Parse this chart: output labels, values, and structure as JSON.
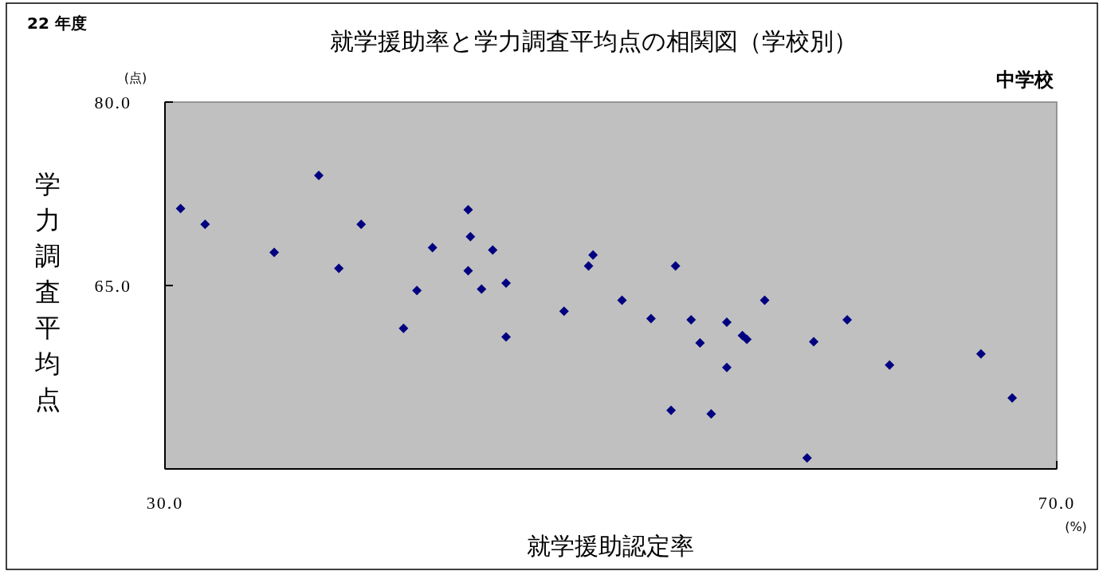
{
  "chart_data": {
    "type": "scatter",
    "title": "就学援助率と学力調査平均点の相関図（学校別）",
    "xlabel": "就学援助認定率",
    "ylabel": "学力調査平均点",
    "annotations": [
      "22 年度",
      "中学校",
      "(点)",
      "(%)"
    ],
    "xlim": [
      30,
      70
    ],
    "xticks": [
      {
        "value": 30,
        "label": "30.0"
      },
      {
        "value": 70,
        "label": "70.0"
      }
    ],
    "ylim": [
      50,
      80
    ],
    "yticks": [
      {
        "value": 65,
        "label": "65.0"
      },
      {
        "value": 80,
        "label": "80.0"
      }
    ],
    "grid": false,
    "marker": "diamond",
    "series": [
      {
        "color": "#000080",
        "x": [
          30.7,
          31.8,
          34.9,
          36.9,
          37.8,
          38.8,
          40.7,
          41.3,
          42.0,
          43.6,
          43.7,
          43.6,
          44.2,
          44.7,
          45.3,
          45.3,
          47.9,
          49.0,
          49.2,
          50.5,
          51.8,
          52.7,
          52.9,
          53.6,
          54.0,
          54.5,
          55.2,
          55.2,
          55.9,
          56.1,
          56.9,
          58.8,
          59.1,
          60.6,
          62.5,
          66.6,
          68.0
        ],
        "values": [
          71.3,
          70.0,
          67.7,
          74.0,
          66.4,
          70.0,
          61.5,
          64.6,
          68.1,
          71.2,
          69.0,
          66.2,
          64.7,
          67.9,
          65.2,
          60.8,
          62.9,
          66.6,
          67.5,
          63.8,
          62.3,
          54.8,
          66.6,
          62.2,
          60.3,
          54.5,
          62.0,
          58.3,
          60.9,
          60.6,
          63.8,
          50.9,
          60.4,
          62.2,
          58.5,
          59.4,
          55.8
        ]
      }
    ]
  }
}
